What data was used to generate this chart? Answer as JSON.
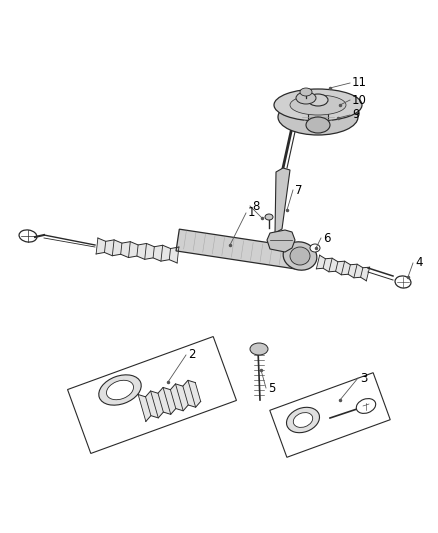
{
  "bg_color": "#ffffff",
  "lc": "#2a2a2a",
  "gc": "#b0b0b0",
  "fc": "#d8d8d8",
  "label_fontsize": 8.5,
  "label_color": "#000000",
  "figw": 4.38,
  "figh": 5.33,
  "dpi": 100
}
